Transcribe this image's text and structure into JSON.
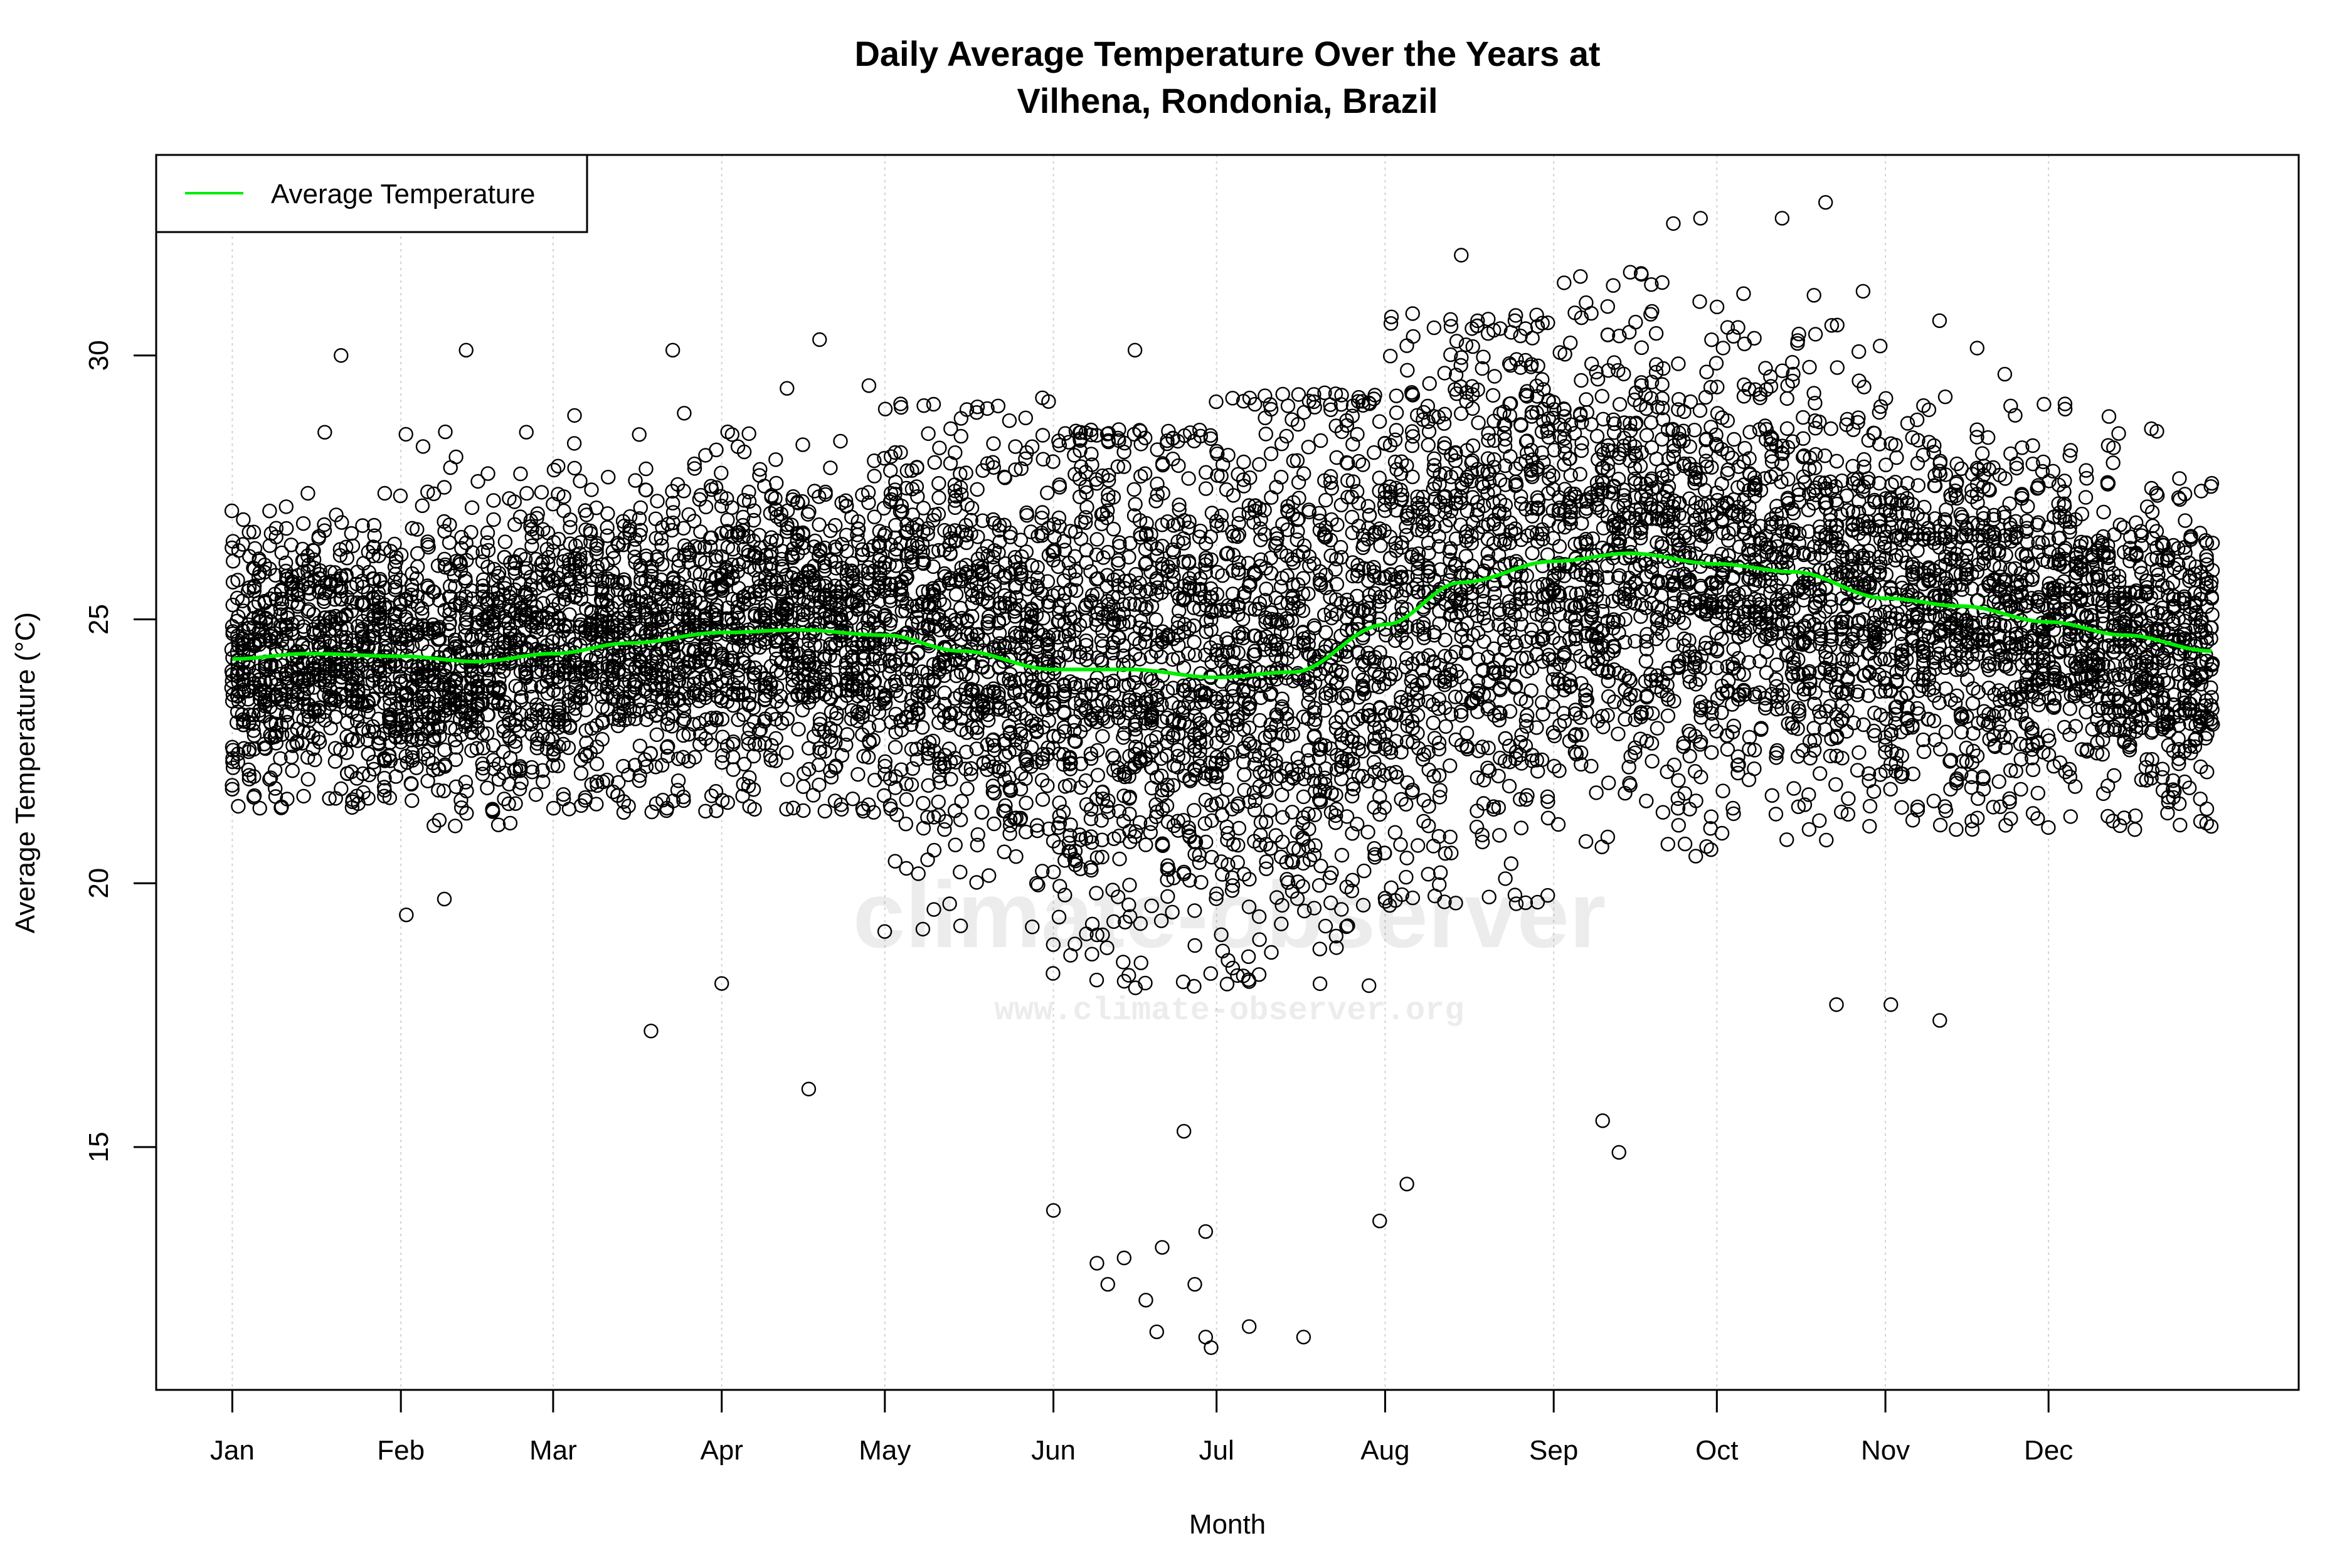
{
  "chart_data": {
    "type": "scatter",
    "title_line1": "Daily Average Temperature Over the Years at",
    "title_line2": "Vilhena, Rondonia, Brazil",
    "xlabel": "Month",
    "ylabel": "Average Temperature (°C)",
    "x_ticks": [
      {
        "label": "Jan",
        "day": 1
      },
      {
        "label": "Feb",
        "day": 32
      },
      {
        "label": "Mar",
        "day": 60
      },
      {
        "label": "Apr",
        "day": 91
      },
      {
        "label": "May",
        "day": 121
      },
      {
        "label": "Jun",
        "day": 152
      },
      {
        "label": "Jul",
        "day": 182
      },
      {
        "label": "Aug",
        "day": 213
      },
      {
        "label": "Sep",
        "day": 244
      },
      {
        "label": "Oct",
        "day": 274
      },
      {
        "label": "Nov",
        "day": 305
      },
      {
        "label": "Dec",
        "day": 335
      }
    ],
    "y_ticks": [
      15,
      20,
      25,
      30
    ],
    "xlim_day_of_year": [
      -13,
      381
    ],
    "ylim": [
      10.4,
      33.8
    ],
    "grid": "vertical dotted lines at month starts",
    "legend": {
      "placement": "top-left",
      "entries": [
        {
          "label": "Average Temperature",
          "color": "#00ee00"
        }
      ]
    },
    "series": [
      {
        "name": "Average Temperature",
        "type": "line",
        "color": "#00ee00",
        "points": [
          [
            1,
            24.25
          ],
          [
            15,
            24.35
          ],
          [
            32,
            24.3
          ],
          [
            46,
            24.2
          ],
          [
            60,
            24.35
          ],
          [
            74,
            24.55
          ],
          [
            91,
            24.75
          ],
          [
            105,
            24.8
          ],
          [
            121,
            24.7
          ],
          [
            135,
            24.4
          ],
          [
            152,
            24.05
          ],
          [
            166,
            24.05
          ],
          [
            182,
            23.9
          ],
          [
            196,
            24.0
          ],
          [
            213,
            24.9
          ],
          [
            227,
            25.7
          ],
          [
            244,
            26.1
          ],
          [
            258,
            26.25
          ],
          [
            274,
            26.05
          ],
          [
            288,
            25.9
          ],
          [
            305,
            25.4
          ],
          [
            319,
            25.25
          ],
          [
            335,
            24.95
          ],
          [
            349,
            24.7
          ],
          [
            365,
            24.4
          ]
        ]
      },
      {
        "type": "scatter",
        "marker": "open circle",
        "color": "#000000",
        "notable_points": [
          [
            33,
            19.4
          ],
          [
            40,
            19.7
          ],
          [
            78,
            17.2
          ],
          [
            91,
            18.1
          ],
          [
            107,
            16.1
          ],
          [
            152,
            13.8
          ],
          [
            160,
            12.8
          ],
          [
            162,
            12.4
          ],
          [
            165,
            12.9
          ],
          [
            169,
            12.1
          ],
          [
            171,
            11.5
          ],
          [
            172,
            13.1
          ],
          [
            178,
            12.4
          ],
          [
            180,
            11.4
          ],
          [
            181,
            11.2
          ],
          [
            180,
            13.4
          ],
          [
            176,
            15.3
          ],
          [
            188,
            11.6
          ],
          [
            198,
            11.4
          ],
          [
            212,
            13.6
          ],
          [
            217,
            14.3
          ],
          [
            253,
            15.5
          ],
          [
            256,
            14.9
          ],
          [
            227,
            31.9
          ],
          [
            266,
            32.5
          ],
          [
            271,
            32.6
          ],
          [
            286,
            32.6
          ],
          [
            294,
            32.9
          ],
          [
            296,
            17.7
          ],
          [
            306,
            17.7
          ],
          [
            315,
            17.4
          ],
          [
            21,
            30.0
          ],
          [
            44,
            30.1
          ],
          [
            82,
            30.1
          ],
          [
            109,
            30.3
          ],
          [
            167,
            30.1
          ]
        ]
      }
    ],
    "watermark": {
      "main": "climate-observer",
      "url": "www.climate-observer.org"
    }
  }
}
